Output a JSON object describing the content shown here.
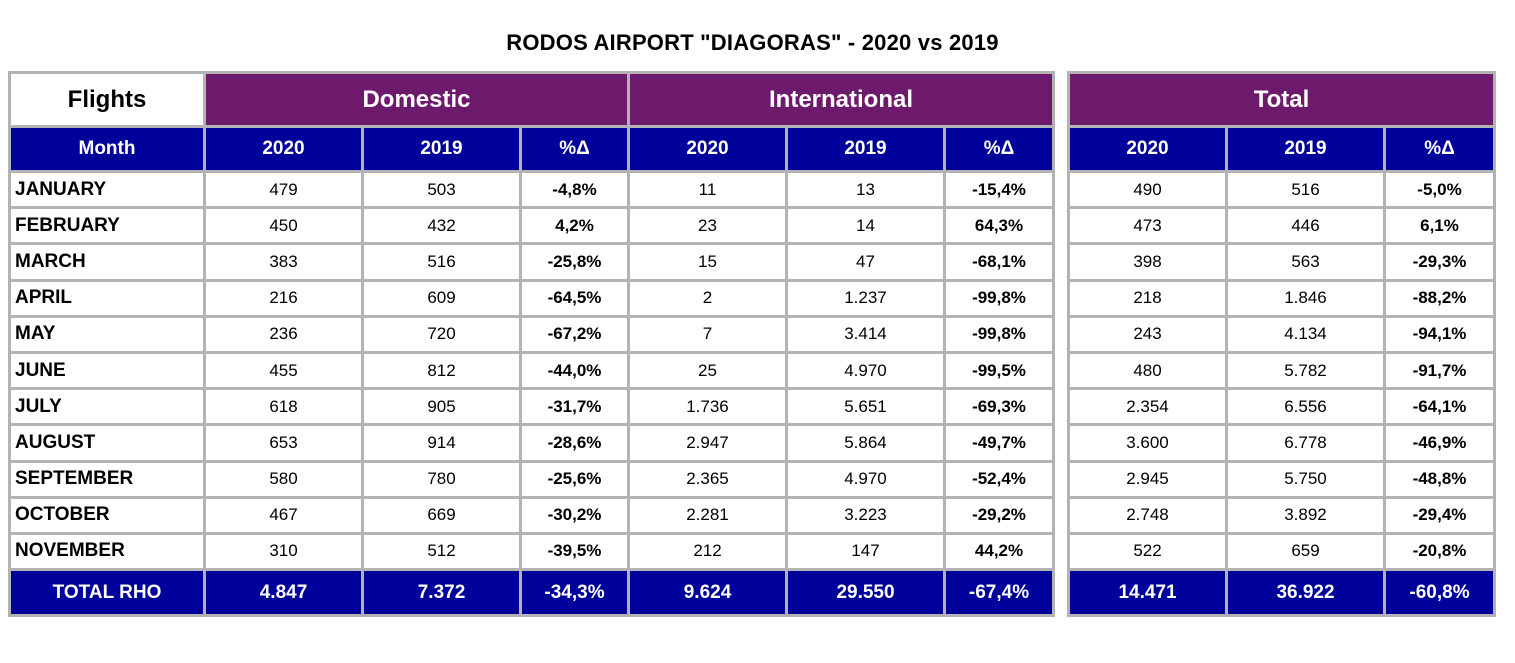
{
  "title": "RODOS AIRPORT \"DIAGORAS\" - 2020 vs 2019",
  "headers": {
    "flights": "Flights",
    "domestic": "Domestic",
    "international": "International",
    "total": "Total",
    "month": "Month",
    "y2020": "2020",
    "y2019": "2019",
    "pct": "%Δ"
  },
  "rows": [
    {
      "month": "JANUARY",
      "d2020": "479",
      "d2019": "503",
      "dpct": "-4,8%",
      "i2020": "11",
      "i2019": "13",
      "ipct": "-15,4%",
      "t2020": "490",
      "t2019": "516",
      "tpct": "-5,0%"
    },
    {
      "month": "FEBRUARY",
      "d2020": "450",
      "d2019": "432",
      "dpct": "4,2%",
      "i2020": "23",
      "i2019": "14",
      "ipct": "64,3%",
      "t2020": "473",
      "t2019": "446",
      "tpct": "6,1%"
    },
    {
      "month": "MARCH",
      "d2020": "383",
      "d2019": "516",
      "dpct": "-25,8%",
      "i2020": "15",
      "i2019": "47",
      "ipct": "-68,1%",
      "t2020": "398",
      "t2019": "563",
      "tpct": "-29,3%"
    },
    {
      "month": "APRIL",
      "d2020": "216",
      "d2019": "609",
      "dpct": "-64,5%",
      "i2020": "2",
      "i2019": "1.237",
      "ipct": "-99,8%",
      "t2020": "218",
      "t2019": "1.846",
      "tpct": "-88,2%"
    },
    {
      "month": "MAY",
      "d2020": "236",
      "d2019": "720",
      "dpct": "-67,2%",
      "i2020": "7",
      "i2019": "3.414",
      "ipct": "-99,8%",
      "t2020": "243",
      "t2019": "4.134",
      "tpct": "-94,1%"
    },
    {
      "month": "JUNE",
      "d2020": "455",
      "d2019": "812",
      "dpct": "-44,0%",
      "i2020": "25",
      "i2019": "4.970",
      "ipct": "-99,5%",
      "t2020": "480",
      "t2019": "5.782",
      "tpct": "-91,7%"
    },
    {
      "month": "JULY",
      "d2020": "618",
      "d2019": "905",
      "dpct": "-31,7%",
      "i2020": "1.736",
      "i2019": "5.651",
      "ipct": "-69,3%",
      "t2020": "2.354",
      "t2019": "6.556",
      "tpct": "-64,1%"
    },
    {
      "month": "AUGUST",
      "d2020": "653",
      "d2019": "914",
      "dpct": "-28,6%",
      "i2020": "2.947",
      "i2019": "5.864",
      "ipct": "-49,7%",
      "t2020": "3.600",
      "t2019": "6.778",
      "tpct": "-46,9%"
    },
    {
      "month": "SEPTEMBER",
      "d2020": "580",
      "d2019": "780",
      "dpct": "-25,6%",
      "i2020": "2.365",
      "i2019": "4.970",
      "ipct": "-52,4%",
      "t2020": "2.945",
      "t2019": "5.750",
      "tpct": "-48,8%"
    },
    {
      "month": "OCTOBER",
      "d2020": "467",
      "d2019": "669",
      "dpct": "-30,2%",
      "i2020": "2.281",
      "i2019": "3.223",
      "ipct": "-29,2%",
      "t2020": "2.748",
      "t2019": "3.892",
      "tpct": "-29,4%"
    },
    {
      "month": "NOVEMBER",
      "d2020": "310",
      "d2019": "512",
      "dpct": "-39,5%",
      "i2020": "212",
      "i2019": "147",
      "ipct": "44,2%",
      "t2020": "522",
      "t2019": "659",
      "tpct": "-20,8%"
    }
  ],
  "total": {
    "label": "TOTAL RHO",
    "d2020": "4.847",
    "d2019": "7.372",
    "dpct": "-34,3%",
    "i2020": "9.624",
    "i2019": "29.550",
    "ipct": "-67,4%",
    "t2020": "14.471",
    "t2019": "36.922",
    "tpct": "-60,8%"
  },
  "colors": {
    "group_header": "#6d1a6d",
    "column_header": "#00009a",
    "grid": "#b3b3b3"
  }
}
